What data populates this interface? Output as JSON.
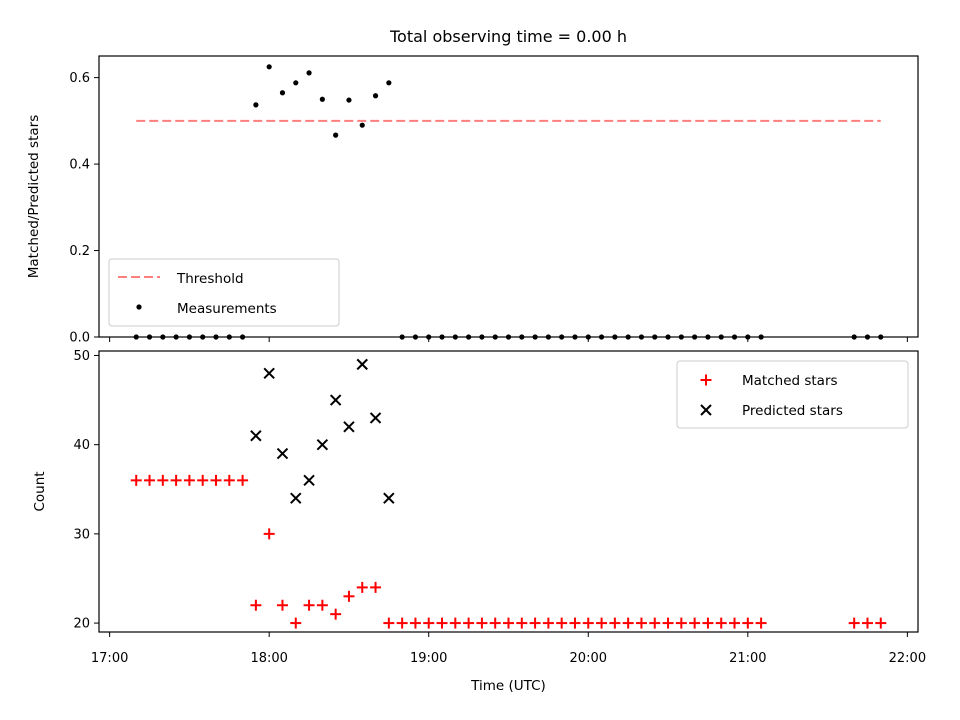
{
  "chart_data": [
    {
      "type": "scatter",
      "title": "Total observing time = 0.00 h",
      "ylabel": "Matched/Predicted stars",
      "ylim": [
        0,
        0.65
      ],
      "yticks": [
        "0.0",
        "0.2",
        "0.4",
        "0.6"
      ],
      "grid": false,
      "legend_position": "lower-left",
      "threshold": {
        "name": "Threshold",
        "value": 0.5,
        "x_start": "17:10",
        "x_end": "21:50",
        "color": "#ff7f7f"
      },
      "series": [
        {
          "name": "Measurements",
          "color": "#000000",
          "marker": "dot",
          "x": [
            "17:10",
            "17:15",
            "17:20",
            "17:25",
            "17:30",
            "17:35",
            "17:40",
            "17:45",
            "17:50",
            "17:55",
            "18:00",
            "18:05",
            "18:10",
            "18:15",
            "18:20",
            "18:25",
            "18:30",
            "18:35",
            "18:40",
            "18:45",
            "18:50",
            "18:55",
            "19:00",
            "19:05",
            "19:10",
            "19:15",
            "19:20",
            "19:25",
            "19:30",
            "19:35",
            "19:40",
            "19:45",
            "19:50",
            "19:55",
            "20:00",
            "20:05",
            "20:10",
            "20:15",
            "20:20",
            "20:25",
            "20:30",
            "20:35",
            "20:40",
            "20:45",
            "20:50",
            "20:55",
            "21:00",
            "21:05",
            "21:40",
            "21:45",
            "21:50"
          ],
          "y": [
            0,
            0,
            0,
            0,
            0,
            0,
            0,
            0,
            0,
            0.537,
            0.625,
            0.565,
            0.588,
            0.611,
            0.55,
            0.467,
            0.548,
            0.49,
            0.558,
            0.588,
            0,
            0,
            0,
            0,
            0,
            0,
            0,
            0,
            0,
            0,
            0,
            0,
            0,
            0,
            0,
            0,
            0,
            0,
            0,
            0,
            0,
            0,
            0,
            0,
            0,
            0,
            0,
            0,
            0,
            0,
            0
          ]
        }
      ]
    },
    {
      "type": "scatter",
      "xlabel": "Time (UTC)",
      "ylabel": "Count",
      "ylim": [
        19,
        50.5
      ],
      "yticks": [
        "20",
        "30",
        "40",
        "50"
      ],
      "xticks": [
        "17:00",
        "18:00",
        "19:00",
        "20:00",
        "21:00",
        "22:00"
      ],
      "xlim": [
        "16:56",
        "22:04"
      ],
      "grid": false,
      "legend_position": "upper-right",
      "series": [
        {
          "name": "Matched stars",
          "color": "#ff0000",
          "marker": "plus",
          "x": [
            "17:10",
            "17:15",
            "17:20",
            "17:25",
            "17:30",
            "17:35",
            "17:40",
            "17:45",
            "17:50",
            "17:55",
            "18:00",
            "18:05",
            "18:10",
            "18:15",
            "18:20",
            "18:25",
            "18:30",
            "18:35",
            "18:40",
            "18:45",
            "18:50",
            "18:55",
            "19:00",
            "19:05",
            "19:10",
            "19:15",
            "19:20",
            "19:25",
            "19:30",
            "19:35",
            "19:40",
            "19:45",
            "19:50",
            "19:55",
            "20:00",
            "20:05",
            "20:10",
            "20:15",
            "20:20",
            "20:25",
            "20:30",
            "20:35",
            "20:40",
            "20:45",
            "20:50",
            "20:55",
            "21:00",
            "21:05",
            "21:40",
            "21:45",
            "21:50"
          ],
          "y": [
            36,
            36,
            36,
            36,
            36,
            36,
            36,
            36,
            36,
            22,
            30,
            22,
            20,
            22,
            22,
            21,
            23,
            24,
            24,
            20,
            20,
            20,
            20,
            20,
            20,
            20,
            20,
            20,
            20,
            20,
            20,
            20,
            20,
            20,
            20,
            20,
            20,
            20,
            20,
            20,
            20,
            20,
            20,
            20,
            20,
            20,
            20,
            20,
            20,
            20,
            20
          ]
        },
        {
          "name": "Predicted stars",
          "color": "#000000",
          "marker": "x",
          "x": [
            "17:55",
            "18:00",
            "18:05",
            "18:10",
            "18:15",
            "18:20",
            "18:25",
            "18:30",
            "18:35",
            "18:40",
            "18:45"
          ],
          "y": [
            41,
            48,
            39,
            34,
            36,
            40,
            45,
            42,
            49,
            43,
            34
          ]
        }
      ]
    }
  ]
}
